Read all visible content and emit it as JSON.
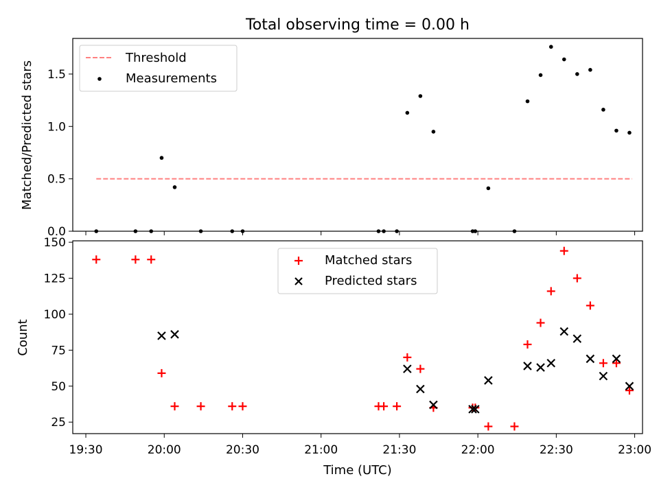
{
  "chart_data": [
    {
      "type": "scatter",
      "title": "Total observing time = 0.00 h",
      "xlabel": "",
      "ylabel": "Matched/Predicted stars",
      "xlim": [
        "19:25",
        "23:03"
      ],
      "ylim": [
        0,
        1.84
      ],
      "yticks": [
        "0.0",
        "0.5",
        "1.0",
        "1.5"
      ],
      "legend_position": "upper-left",
      "threshold": {
        "name": "Threshold",
        "color": "#ff8080",
        "y": 0.5,
        "x_range": [
          "19:34",
          "22:59"
        ]
      },
      "series": [
        {
          "name": "Measurements",
          "color": "#000000",
          "points": [
            [
              "19:34",
              0.0
            ],
            [
              "19:49",
              0.0
            ],
            [
              "19:55",
              0.0
            ],
            [
              "19:59",
              0.7
            ],
            [
              "20:04",
              0.42
            ],
            [
              "20:14",
              0.0
            ],
            [
              "20:26",
              0.0
            ],
            [
              "20:30",
              0.0
            ],
            [
              "21:22",
              0.0
            ],
            [
              "21:24",
              0.0
            ],
            [
              "21:29",
              0.0
            ],
            [
              "21:33",
              1.13
            ],
            [
              "21:38",
              1.29
            ],
            [
              "21:43",
              0.95
            ],
            [
              "21:58",
              0.0
            ],
            [
              "21:59",
              0.0
            ],
            [
              "22:04",
              0.41
            ],
            [
              "22:14",
              0.0
            ],
            [
              "22:19",
              1.24
            ],
            [
              "22:24",
              1.49
            ],
            [
              "22:28",
              1.76
            ],
            [
              "22:33",
              1.64
            ],
            [
              "22:38",
              1.5
            ],
            [
              "22:43",
              1.54
            ],
            [
              "22:48",
              1.16
            ],
            [
              "22:53",
              0.96
            ],
            [
              "22:58",
              0.94
            ]
          ]
        }
      ]
    },
    {
      "type": "scatter",
      "title": "",
      "xlabel": "Time (UTC)",
      "ylabel": "Count",
      "xlim": [
        "19:25",
        "23:03"
      ],
      "ylim": [
        17,
        151
      ],
      "xticks": [
        "19:30",
        "20:00",
        "20:30",
        "21:00",
        "21:30",
        "22:00",
        "22:30",
        "23:00"
      ],
      "yticks": [
        "25",
        "50",
        "75",
        "100",
        "125",
        "150"
      ],
      "legend_position": "upper-center",
      "series": [
        {
          "name": "Matched stars",
          "color": "#ff0000",
          "marker": "plus",
          "points": [
            [
              "19:34",
              138
            ],
            [
              "19:49",
              138
            ],
            [
              "19:55",
              138
            ],
            [
              "19:59",
              59
            ],
            [
              "20:04",
              36
            ],
            [
              "20:14",
              36
            ],
            [
              "20:26",
              36
            ],
            [
              "20:30",
              36
            ],
            [
              "21:22",
              36
            ],
            [
              "21:24",
              36
            ],
            [
              "21:29",
              36
            ],
            [
              "21:33",
              70
            ],
            [
              "21:38",
              62
            ],
            [
              "21:43",
              35
            ],
            [
              "21:58",
              35
            ],
            [
              "21:59",
              35
            ],
            [
              "22:04",
              22
            ],
            [
              "22:14",
              22
            ],
            [
              "22:19",
              79
            ],
            [
              "22:24",
              94
            ],
            [
              "22:28",
              116
            ],
            [
              "22:33",
              144
            ],
            [
              "22:38",
              125
            ],
            [
              "22:43",
              106
            ],
            [
              "22:48",
              66
            ],
            [
              "22:53",
              66
            ],
            [
              "22:58",
              47
            ]
          ]
        },
        {
          "name": "Predicted stars",
          "color": "#000000",
          "marker": "x",
          "points": [
            [
              "19:59",
              85
            ],
            [
              "20:04",
              86
            ],
            [
              "21:33",
              62
            ],
            [
              "21:38",
              48
            ],
            [
              "21:43",
              37
            ],
            [
              "21:58",
              34
            ],
            [
              "21:59",
              34
            ],
            [
              "22:04",
              54
            ],
            [
              "22:19",
              64
            ],
            [
              "22:24",
              63
            ],
            [
              "22:28",
              66
            ],
            [
              "22:33",
              88
            ],
            [
              "22:38",
              83
            ],
            [
              "22:43",
              69
            ],
            [
              "22:48",
              57
            ],
            [
              "22:53",
              69
            ],
            [
              "22:58",
              50
            ]
          ]
        }
      ]
    }
  ]
}
